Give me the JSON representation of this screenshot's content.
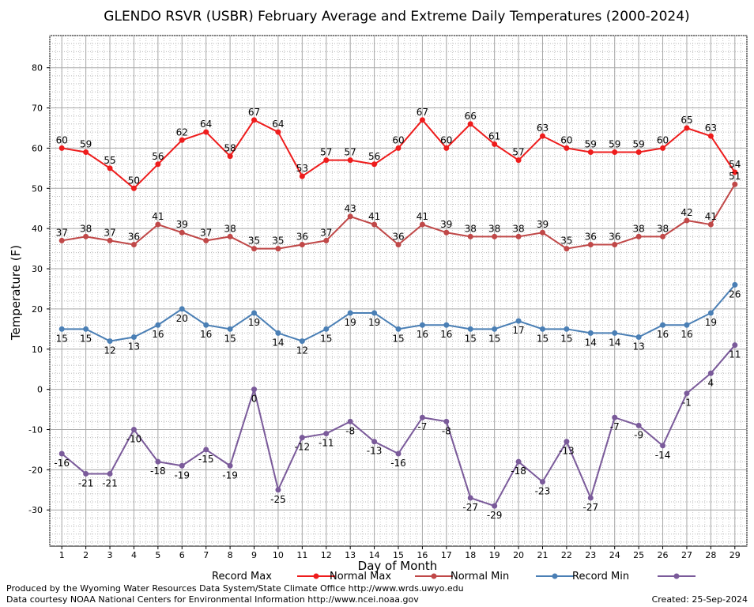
{
  "chart_data": {
    "type": "line",
    "title": "GLENDO RSVR (USBR) February Average and Extreme Daily Temperatures (2000-2024)",
    "xlabel": "Day of Month",
    "ylabel": "Temperature (F)",
    "xlim": [
      0.5,
      29.5
    ],
    "ylim": [
      -39,
      88
    ],
    "yticks": [
      80,
      70,
      60,
      50,
      40,
      30,
      20,
      10,
      0,
      -10,
      -20,
      -30
    ],
    "categories": [
      "1",
      "2",
      "3",
      "4",
      "5",
      "6",
      "7",
      "8",
      "9",
      "10",
      "11",
      "12",
      "13",
      "14",
      "15",
      "16",
      "17",
      "18",
      "19",
      "20",
      "21",
      "22",
      "23",
      "24",
      "25",
      "26",
      "27",
      "28",
      "29"
    ],
    "grid": true,
    "legend": "bottom",
    "series": [
      {
        "name": "Record Max",
        "color": "#ee1c1c",
        "values": [
          60,
          59,
          55,
          50,
          56,
          62,
          64,
          58,
          67,
          64,
          53,
          57,
          57,
          56,
          60,
          67,
          60,
          66,
          61,
          57,
          63,
          60,
          59,
          59,
          59,
          60,
          65,
          63,
          54
        ]
      },
      {
        "name": "Normal Max",
        "color": "#c04848",
        "values": [
          37,
          38,
          37,
          36,
          41,
          39,
          37,
          38,
          35,
          35,
          36,
          37,
          43,
          41,
          36,
          41,
          39,
          38,
          38,
          38,
          39,
          35,
          36,
          36,
          38,
          38,
          42,
          41,
          51
        ]
      },
      {
        "name": "Normal Min",
        "color": "#4a7fb5",
        "values": [
          15,
          15,
          12,
          13,
          16,
          20,
          16,
          15,
          19,
          14,
          12,
          15,
          19,
          19,
          15,
          16,
          16,
          15,
          15,
          17,
          15,
          15,
          14,
          14,
          13,
          16,
          16,
          19,
          26
        ]
      },
      {
        "name": "Record Min",
        "color": "#7a5a9a",
        "values": [
          -16,
          -21,
          -21,
          -10,
          -18,
          -19,
          -15,
          -19,
          0,
          -25,
          -12,
          -11,
          -8,
          -13,
          -16,
          -7,
          -8,
          -27,
          -29,
          -18,
          -23,
          -13,
          -27,
          -7,
          -9,
          -14,
          -1,
          4,
          11
        ]
      }
    ]
  },
  "footer": {
    "produced_by": "Produced by the Wyoming Water Resources Data System/State Climate Office http://www.wrds.uwyo.edu",
    "data_courtesy": "Data courtesy NOAA National Centers for Environmental Information http://www.ncei.noaa.gov",
    "created": "Created:  25-Sep-2024"
  }
}
